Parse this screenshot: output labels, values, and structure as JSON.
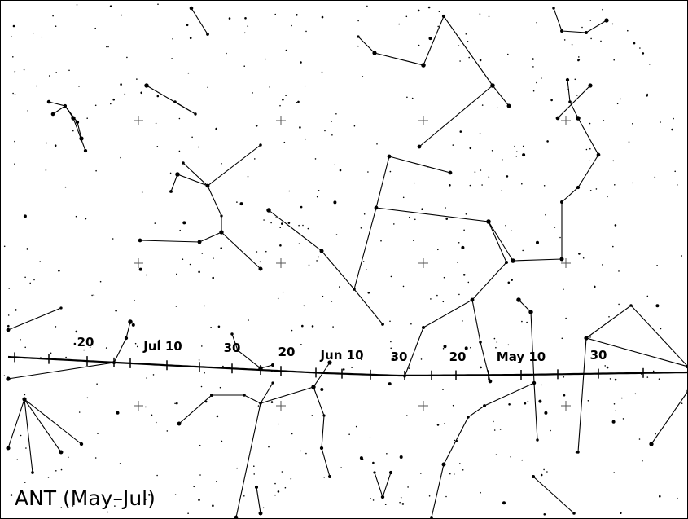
{
  "title": "ANT (May–Jul)",
  "date_labels": [
    "20",
    "Jul 10",
    "30",
    "20",
    "Jun 10",
    "30",
    "20",
    "May 10",
    "30"
  ]
}
